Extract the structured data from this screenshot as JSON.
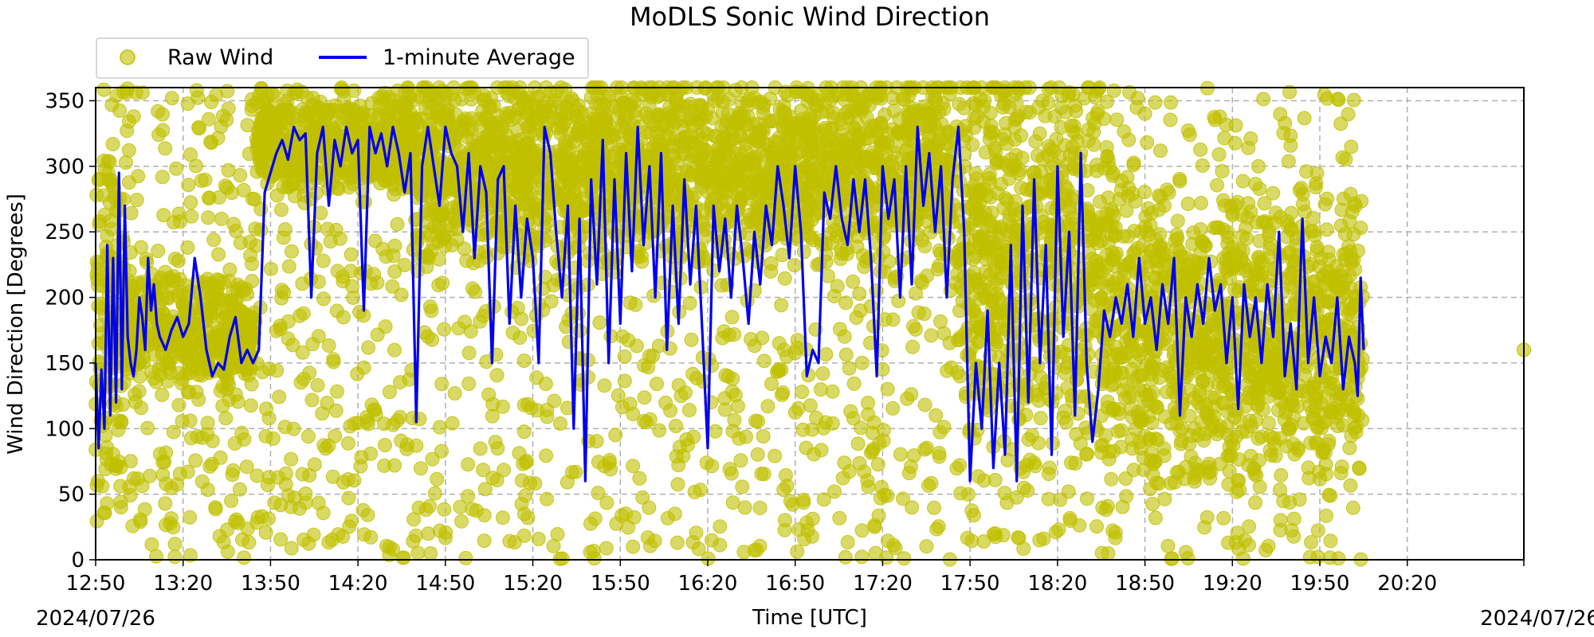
{
  "chart_data": {
    "type": "scatter",
    "title": "MoDLS Sonic Wind Direction",
    "xlabel": "Time [UTC]",
    "ylabel": "Wind Direction [Degrees]",
    "date_left": "2024/07/26",
    "date_right": "2024/07/26",
    "xlim": [
      "12:50",
      "21:00"
    ],
    "ylim": [
      0,
      360
    ],
    "x_ticks": [
      "12:50",
      "13:20",
      "13:50",
      "14:20",
      "14:50",
      "15:20",
      "15:50",
      "16:20",
      "16:50",
      "17:20",
      "17:50",
      "18:20",
      "18:50",
      "19:20",
      "19:50",
      "20:20"
    ],
    "y_ticks": [
      0,
      50,
      100,
      150,
      200,
      250,
      300,
      350
    ],
    "grid": true,
    "legend_position": "top-left, outside above plot",
    "legend": [
      "Raw Wind",
      "1-minute Average"
    ],
    "colors": {
      "raw": "#bfbf00",
      "average": "#0000ee"
    },
    "series": [
      {
        "name": "Raw Wind",
        "kind": "scatter",
        "note_range": [
          "12:50",
          "20:05"
        ],
        "segments": [
          {
            "start": "12:50",
            "end": "13:00",
            "center": 170,
            "spread": 170
          },
          {
            "start": "13:00",
            "end": "13:45",
            "center": 175,
            "spread": 50
          },
          {
            "start": "13:45",
            "end": "14:40",
            "center": 320,
            "spread": 45
          },
          {
            "start": "14:40",
            "end": "17:45",
            "center": 300,
            "spread": 80
          },
          {
            "start": "17:45",
            "end": "18:35",
            "center": 240,
            "spread": 170
          },
          {
            "start": "18:35",
            "end": "20:05",
            "center": 170,
            "spread": 120
          }
        ],
        "extra_points": [
          [
            "21:00",
            160
          ]
        ]
      },
      {
        "name": "1-minute Average",
        "kind": "line",
        "points": [
          [
            "12:50",
            150
          ],
          [
            "12:51",
            85
          ],
          [
            "12:52",
            145
          ],
          [
            "12:53",
            100
          ],
          [
            "12:54",
            240
          ],
          [
            "12:55",
            110
          ],
          [
            "12:56",
            230
          ],
          [
            "12:57",
            120
          ],
          [
            "12:58",
            295
          ],
          [
            "12:59",
            130
          ],
          [
            "13:00",
            270
          ],
          [
            "13:01",
            170
          ],
          [
            "13:02",
            150
          ],
          [
            "13:03",
            140
          ],
          [
            "13:04",
            160
          ],
          [
            "13:05",
            200
          ],
          [
            "13:06",
            185
          ],
          [
            "13:07",
            160
          ],
          [
            "13:08",
            230
          ],
          [
            "13:09",
            190
          ],
          [
            "13:10",
            210
          ],
          [
            "13:11",
            180
          ],
          [
            "13:12",
            170
          ],
          [
            "13:14",
            160
          ],
          [
            "13:16",
            175
          ],
          [
            "13:18",
            185
          ],
          [
            "13:20",
            170
          ],
          [
            "13:22",
            180
          ],
          [
            "13:24",
            230
          ],
          [
            "13:26",
            200
          ],
          [
            "13:28",
            160
          ],
          [
            "13:30",
            140
          ],
          [
            "13:32",
            150
          ],
          [
            "13:34",
            145
          ],
          [
            "13:36",
            170
          ],
          [
            "13:38",
            185
          ],
          [
            "13:40",
            150
          ],
          [
            "13:42",
            160
          ],
          [
            "13:44",
            150
          ],
          [
            "13:46",
            160
          ],
          [
            "13:48",
            280
          ],
          [
            "13:50",
            295
          ],
          [
            "13:52",
            310
          ],
          [
            "13:54",
            320
          ],
          [
            "13:56",
            305
          ],
          [
            "13:58",
            330
          ],
          [
            "14:00",
            320
          ],
          [
            "14:02",
            325
          ],
          [
            "14:04",
            200
          ],
          [
            "14:06",
            310
          ],
          [
            "14:08",
            330
          ],
          [
            "14:10",
            270
          ],
          [
            "14:12",
            320
          ],
          [
            "14:14",
            300
          ],
          [
            "14:16",
            330
          ],
          [
            "14:18",
            310
          ],
          [
            "14:20",
            320
          ],
          [
            "14:22",
            190
          ],
          [
            "14:24",
            330
          ],
          [
            "14:26",
            310
          ],
          [
            "14:28",
            325
          ],
          [
            "14:30",
            300
          ],
          [
            "14:32",
            330
          ],
          [
            "14:34",
            310
          ],
          [
            "14:36",
            280
          ],
          [
            "14:38",
            310
          ],
          [
            "14:40",
            105
          ],
          [
            "14:42",
            300
          ],
          [
            "14:44",
            330
          ],
          [
            "14:46",
            300
          ],
          [
            "14:48",
            270
          ],
          [
            "14:50",
            330
          ],
          [
            "14:52",
            310
          ],
          [
            "14:54",
            300
          ],
          [
            "14:56",
            250
          ],
          [
            "14:58",
            310
          ],
          [
            "15:00",
            230
          ],
          [
            "15:02",
            300
          ],
          [
            "15:04",
            280
          ],
          [
            "15:06",
            150
          ],
          [
            "15:08",
            290
          ],
          [
            "15:10",
            300
          ],
          [
            "15:12",
            180
          ],
          [
            "15:14",
            270
          ],
          [
            "15:16",
            200
          ],
          [
            "15:18",
            260
          ],
          [
            "15:20",
            230
          ],
          [
            "15:22",
            150
          ],
          [
            "15:24",
            330
          ],
          [
            "15:26",
            310
          ],
          [
            "15:28",
            250
          ],
          [
            "15:30",
            200
          ],
          [
            "15:32",
            270
          ],
          [
            "15:34",
            100
          ],
          [
            "15:36",
            260
          ],
          [
            "15:38",
            60
          ],
          [
            "15:40",
            290
          ],
          [
            "15:42",
            210
          ],
          [
            "15:44",
            320
          ],
          [
            "15:46",
            150
          ],
          [
            "15:48",
            290
          ],
          [
            "15:50",
            180
          ],
          [
            "15:52",
            310
          ],
          [
            "15:54",
            220
          ],
          [
            "15:56",
            330
          ],
          [
            "15:58",
            240
          ],
          [
            "16:00",
            300
          ],
          [
            "16:02",
            200
          ],
          [
            "16:04",
            310
          ],
          [
            "16:06",
            160
          ],
          [
            "16:08",
            270
          ],
          [
            "16:10",
            180
          ],
          [
            "16:12",
            290
          ],
          [
            "16:14",
            210
          ],
          [
            "16:16",
            270
          ],
          [
            "16:18",
            180
          ],
          [
            "16:20",
            85
          ],
          [
            "16:22",
            270
          ],
          [
            "16:24",
            220
          ],
          [
            "16:26",
            260
          ],
          [
            "16:28",
            200
          ],
          [
            "16:30",
            270
          ],
          [
            "16:32",
            230
          ],
          [
            "16:34",
            180
          ],
          [
            "16:36",
            250
          ],
          [
            "16:38",
            210
          ],
          [
            "16:40",
            270
          ],
          [
            "16:42",
            240
          ],
          [
            "16:44",
            300
          ],
          [
            "16:46",
            270
          ],
          [
            "16:48",
            230
          ],
          [
            "16:50",
            300
          ],
          [
            "16:52",
            250
          ],
          [
            "16:54",
            140
          ],
          [
            "16:56",
            160
          ],
          [
            "16:58",
            150
          ],
          [
            "17:00",
            280
          ],
          [
            "17:02",
            260
          ],
          [
            "17:04",
            300
          ],
          [
            "17:06",
            260
          ],
          [
            "17:08",
            240
          ],
          [
            "17:10",
            290
          ],
          [
            "17:12",
            250
          ],
          [
            "17:14",
            290
          ],
          [
            "17:16",
            230
          ],
          [
            "17:18",
            140
          ],
          [
            "17:20",
            300
          ],
          [
            "17:22",
            260
          ],
          [
            "17:24",
            290
          ],
          [
            "17:26",
            200
          ],
          [
            "17:28",
            300
          ],
          [
            "17:30",
            210
          ],
          [
            "17:32",
            330
          ],
          [
            "17:34",
            270
          ],
          [
            "17:36",
            310
          ],
          [
            "17:38",
            250
          ],
          [
            "17:40",
            300
          ],
          [
            "17:42",
            200
          ],
          [
            "17:44",
            290
          ],
          [
            "17:46",
            330
          ],
          [
            "17:48",
            250
          ],
          [
            "17:50",
            60
          ],
          [
            "17:52",
            150
          ],
          [
            "17:54",
            100
          ],
          [
            "17:56",
            190
          ],
          [
            "17:58",
            70
          ],
          [
            "18:00",
            150
          ],
          [
            "18:02",
            80
          ],
          [
            "18:04",
            240
          ],
          [
            "18:06",
            60
          ],
          [
            "18:08",
            270
          ],
          [
            "18:10",
            120
          ],
          [
            "18:12",
            290
          ],
          [
            "18:14",
            150
          ],
          [
            "18:16",
            240
          ],
          [
            "18:18",
            80
          ],
          [
            "18:20",
            300
          ],
          [
            "18:22",
            170
          ],
          [
            "18:24",
            250
          ],
          [
            "18:26",
            110
          ],
          [
            "18:28",
            310
          ],
          [
            "18:30",
            150
          ],
          [
            "18:32",
            90
          ],
          [
            "18:34",
            130
          ],
          [
            "18:36",
            190
          ],
          [
            "18:38",
            170
          ],
          [
            "18:40",
            200
          ],
          [
            "18:42",
            180
          ],
          [
            "18:44",
            210
          ],
          [
            "18:46",
            170
          ],
          [
            "18:48",
            230
          ],
          [
            "18:50",
            180
          ],
          [
            "18:52",
            200
          ],
          [
            "18:54",
            160
          ],
          [
            "18:56",
            210
          ],
          [
            "18:58",
            180
          ],
          [
            "19:00",
            230
          ],
          [
            "19:02",
            110
          ],
          [
            "19:04",
            200
          ],
          [
            "19:06",
            170
          ],
          [
            "19:08",
            210
          ],
          [
            "19:10",
            180
          ],
          [
            "19:12",
            230
          ],
          [
            "19:14",
            190
          ],
          [
            "19:16",
            210
          ],
          [
            "19:18",
            150
          ],
          [
            "19:20",
            200
          ],
          [
            "19:22",
            115
          ],
          [
            "19:24",
            210
          ],
          [
            "19:26",
            170
          ],
          [
            "19:28",
            200
          ],
          [
            "19:30",
            150
          ],
          [
            "19:32",
            210
          ],
          [
            "19:34",
            170
          ],
          [
            "19:36",
            250
          ],
          [
            "19:38",
            140
          ],
          [
            "19:40",
            180
          ],
          [
            "19:42",
            130
          ],
          [
            "19:44",
            260
          ],
          [
            "19:46",
            150
          ],
          [
            "19:48",
            200
          ],
          [
            "19:50",
            140
          ],
          [
            "19:52",
            170
          ],
          [
            "19:54",
            150
          ],
          [
            "19:56",
            200
          ],
          [
            "19:58",
            130
          ],
          [
            "20:00",
            170
          ],
          [
            "20:02",
            150
          ],
          [
            "20:03",
            125
          ],
          [
            "20:04",
            215
          ],
          [
            "20:05",
            160
          ]
        ]
      }
    ]
  }
}
